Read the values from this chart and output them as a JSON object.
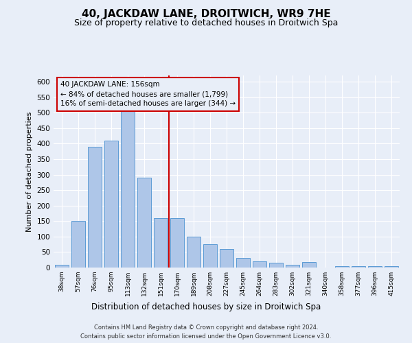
{
  "title": "40, JACKDAW LANE, DROITWICH, WR9 7HE",
  "subtitle": "Size of property relative to detached houses in Droitwich Spa",
  "xlabel": "Distribution of detached houses by size in Droitwich Spa",
  "ylabel": "Number of detached properties",
  "categories": [
    "38sqm",
    "57sqm",
    "76sqm",
    "95sqm",
    "113sqm",
    "132sqm",
    "151sqm",
    "170sqm",
    "189sqm",
    "208sqm",
    "227sqm",
    "245sqm",
    "264sqm",
    "283sqm",
    "302sqm",
    "321sqm",
    "340sqm",
    "358sqm",
    "377sqm",
    "396sqm",
    "415sqm"
  ],
  "values": [
    8,
    150,
    390,
    410,
    510,
    290,
    160,
    160,
    100,
    75,
    60,
    30,
    20,
    15,
    8,
    18,
    0,
    5,
    5,
    5,
    5
  ],
  "bar_color": "#aec6e8",
  "bar_edge_color": "#5a9bd5",
  "vline_color": "#cc0000",
  "annotation_text": "40 JACKDAW LANE: 156sqm\n← 84% of detached houses are smaller (1,799)\n16% of semi-detached houses are larger (344) →",
  "annotation_box_color": "#cc0000",
  "ylim": [
    0,
    620
  ],
  "yticks": [
    0,
    50,
    100,
    150,
    200,
    250,
    300,
    350,
    400,
    450,
    500,
    550,
    600
  ],
  "footer_line1": "Contains HM Land Registry data © Crown copyright and database right 2024.",
  "footer_line2": "Contains public sector information licensed under the Open Government Licence v3.0.",
  "background_color": "#e8eef8",
  "grid_color": "#ffffff"
}
